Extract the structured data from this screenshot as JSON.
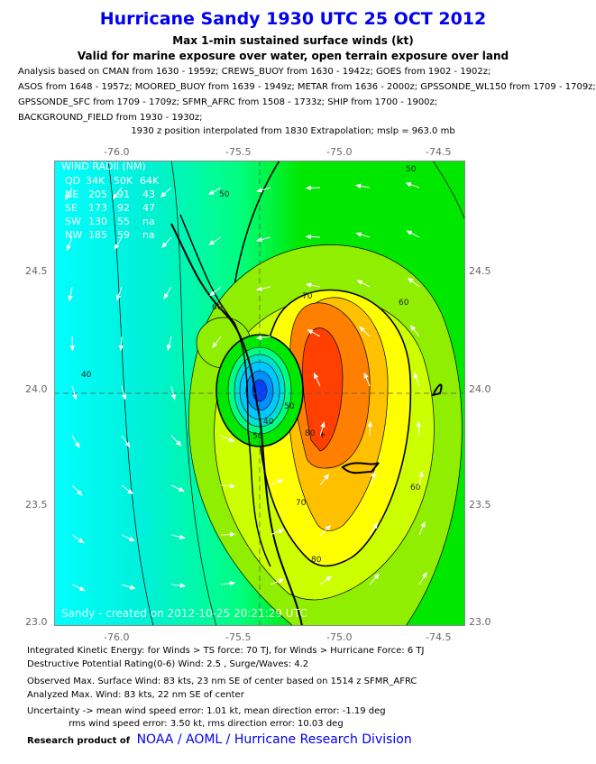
{
  "header": {
    "title": "Hurricane Sandy 1930 UTC 25 OCT 2012",
    "subtitle1": "Max 1-min sustained surface winds (kt)",
    "subtitle2": "Valid for marine exposure over water, open terrain exposure over land"
  },
  "analysis_lines": [
    "Analysis based on CMAN from 1630 - 1959z; CREWS_BUOY from 1630 - 1942z; GOES from 1902 - 1902z;",
    "ASOS from 1648 - 1957z; MOORED_BUOY from 1639 - 1949z; METAR from 1636 - 2000z; GPSSONDE_WL150 from 1709 - 1709z;",
    "GPSSONDE_SFC from 1709 - 1709z; SFMR_AFRC from 1508 - 1733z; SHIP from 1700 - 1900z;",
    "BACKGROUND_FIELD from 1930 - 1930z;"
  ],
  "position_line": "1930 z position interpolated from 1830 Extrapolation; mslp = 963.0 mb",
  "map": {
    "lon_ticks": [
      "-76.0",
      "-75.5",
      "-75.0",
      "-74.5"
    ],
    "lat_ticks": [
      "24.5",
      "24.0",
      "23.5",
      "23.0"
    ],
    "contour_labels": [
      "50",
      "50",
      "60",
      "60",
      "60",
      "70",
      "70",
      "80",
      "40",
      "40",
      "50",
      "50",
      "80"
    ],
    "watermark": "Sandy - created on 2012-10-25 20:21:29 UTC",
    "wind_radii": {
      "title": "WIND RADII (NM)",
      "header": [
        "QD",
        "34K",
        "50K",
        "64K"
      ],
      "rows": [
        [
          "NE",
          "205",
          "91",
          "43"
        ],
        [
          "SE",
          "173",
          "92",
          "47"
        ],
        [
          "SW",
          "130",
          "55",
          "na"
        ],
        [
          "NW",
          "185",
          "59",
          "na"
        ]
      ]
    }
  },
  "info": {
    "ike": "Integrated Kinetic Energy: for Winds > TS force: 70 TJ, for Winds > Hurricane Force: 6 TJ",
    "dpr": "Destructive Potential Rating(0-6)   Wind: 2.5 , Surge/Waves: 4.2",
    "observed": "Observed Max. Surface Wind: 83 kts, 23 nm SE of center based on 1514 z SFMR_AFRC",
    "analyzed": "Analyzed Max. Wind: 83 kts, 22 nm  SE of center",
    "uncertainty1": "Uncertainty -> mean wind speed error: 1.01 kt, mean direction error:  -1.19 deg",
    "uncertainty2": "rms wind speed error: 3.50 kt, rms direction error: 10.03 deg"
  },
  "footer": {
    "prefix": "Research product of",
    "link": "NOAA / AOML / Hurricane Research Division"
  }
}
